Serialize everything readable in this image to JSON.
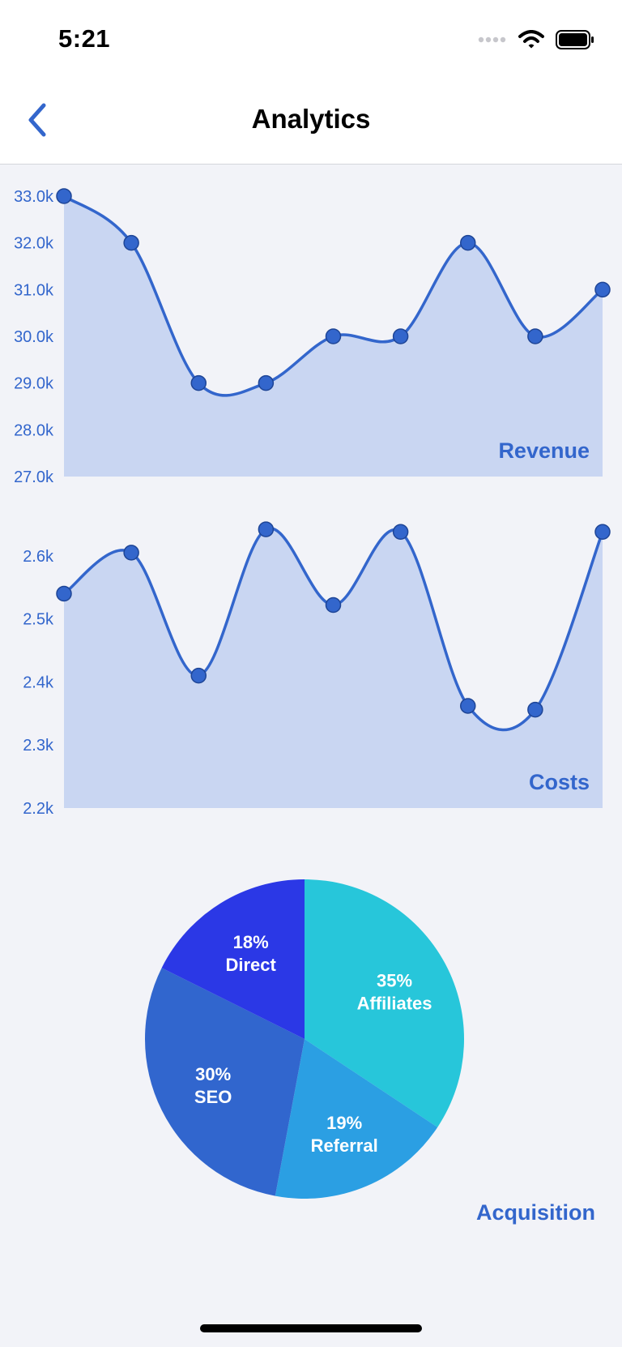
{
  "status": {
    "time": "5:21",
    "signal_icon": "cellular-signal-icon",
    "wifi_icon": "wifi-icon",
    "battery_icon": "battery-icon"
  },
  "nav": {
    "title": "Analytics",
    "back_icon": "chevron-left-icon"
  },
  "colors": {
    "accent": "#3366CC",
    "area_fill": "#C9D6F2",
    "page_bg": "#F2F3F8",
    "pie": [
      "#27C6DA",
      "#2B9FE3",
      "#3166CE",
      "#2B38E6"
    ]
  },
  "chart_data": [
    {
      "type": "area",
      "title": "Revenue",
      "x": [
        1,
        2,
        3,
        4,
        5,
        6,
        7,
        8,
        9
      ],
      "values": [
        33000,
        32000,
        29000,
        29000,
        30000,
        30000,
        32000,
        30000,
        31000
      ],
      "ylim": [
        27000,
        33000
      ],
      "yticks": [
        "27.0k",
        "28.0k",
        "29.0k",
        "30.0k",
        "31.0k",
        "32.0k",
        "33.0k"
      ],
      "grid": false,
      "markers": true,
      "curve": "smooth"
    },
    {
      "type": "area",
      "title": "Costs",
      "x": [
        1,
        2,
        3,
        4,
        5,
        6,
        7,
        8,
        9
      ],
      "values": [
        2540,
        2605,
        2410,
        2642,
        2522,
        2638,
        2362,
        2356,
        2638
      ],
      "ylim": [
        2200,
        2700
      ],
      "yticks": [
        "2.2k",
        "2.3k",
        "2.4k",
        "2.5k",
        "2.6k"
      ],
      "grid": false,
      "markers": true,
      "curve": "smooth"
    },
    {
      "type": "pie",
      "title": "Acquisition",
      "slices": [
        {
          "label": "Affiliates",
          "percent_label": "35%",
          "value": 35
        },
        {
          "label": "Referral",
          "percent_label": "19%",
          "value": 19
        },
        {
          "label": "SEO",
          "percent_label": "30%",
          "value": 30
        },
        {
          "label": "Direct",
          "percent_label": "18%",
          "value": 18
        }
      ]
    }
  ]
}
